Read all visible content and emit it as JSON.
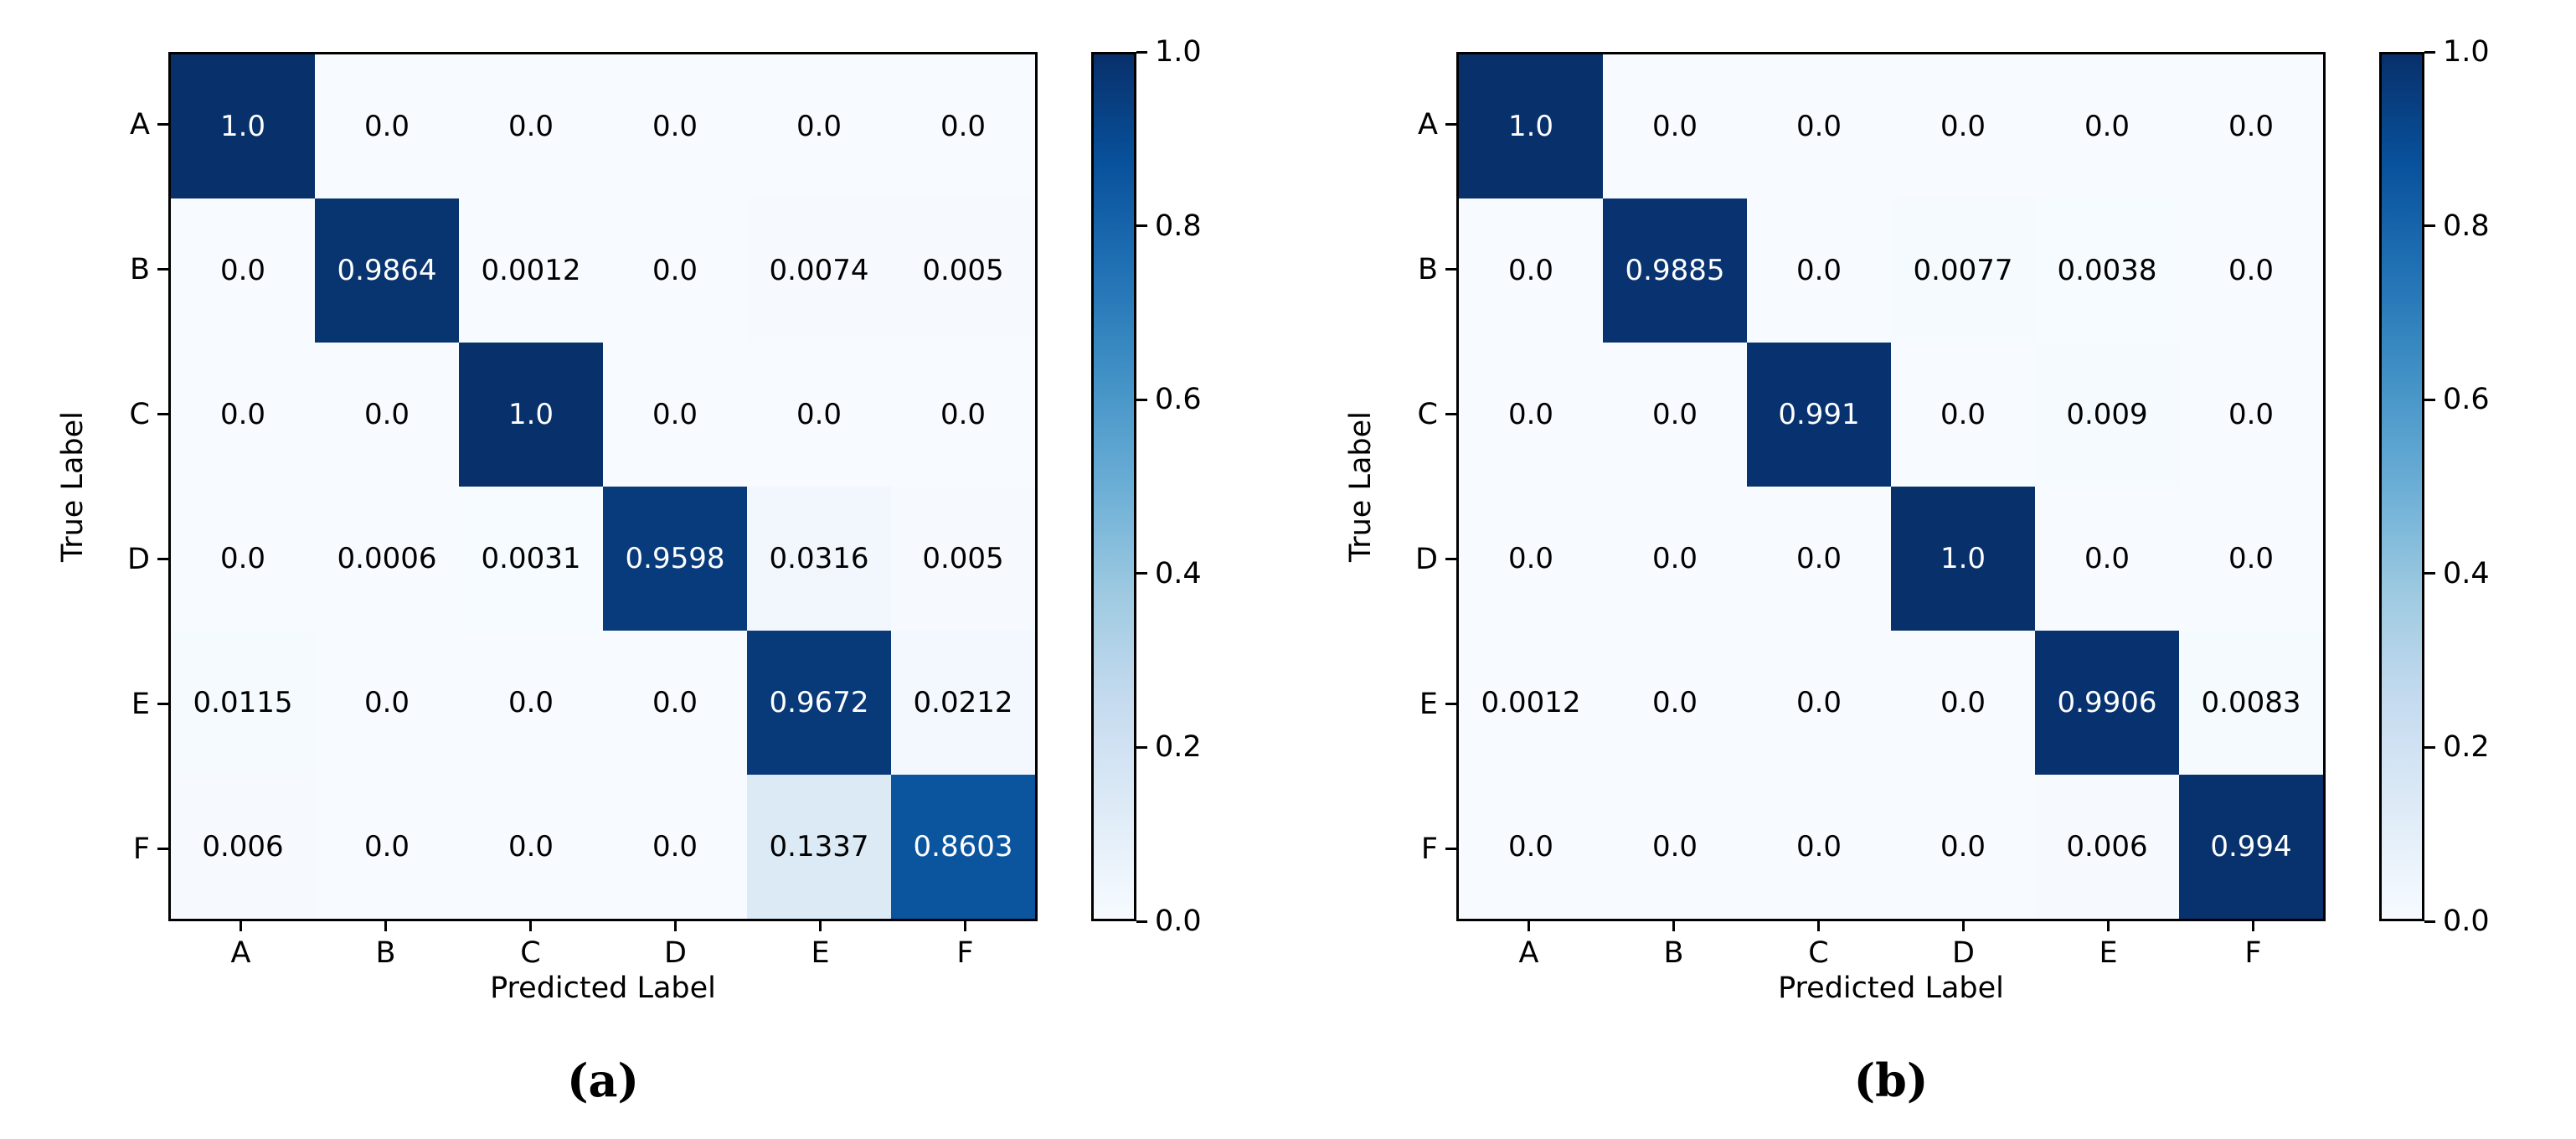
{
  "figure": {
    "panels": [
      {
        "caption": "(a)",
        "xlabel": "Predicted Label",
        "ylabel": "True Label"
      },
      {
        "caption": "(b)",
        "xlabel": "Predicted Label",
        "ylabel": "True Label"
      }
    ]
  },
  "chart_data": [
    {
      "type": "heatmap",
      "subtitle": "(a)",
      "xlabel": "Predicted Label",
      "ylabel": "True Label",
      "x_categories": [
        "A",
        "B",
        "C",
        "D",
        "E",
        "F"
      ],
      "y_categories": [
        "A",
        "B",
        "C",
        "D",
        "E",
        "F"
      ],
      "matrix": [
        [
          1.0,
          0.0,
          0.0,
          0.0,
          0.0,
          0.0
        ],
        [
          0.0,
          0.9864,
          0.0012,
          0.0,
          0.0074,
          0.005
        ],
        [
          0.0,
          0.0,
          1.0,
          0.0,
          0.0,
          0.0
        ],
        [
          0.0,
          0.0006,
          0.0031,
          0.9598,
          0.0316,
          0.005
        ],
        [
          0.0115,
          0.0,
          0.0,
          0.0,
          0.9672,
          0.0212
        ],
        [
          0.006,
          0.0,
          0.0,
          0.0,
          0.1337,
          0.8603
        ]
      ],
      "colormap": "Blues",
      "color_range": [
        0.0,
        1.0
      ],
      "colorbar_ticks": [
        0.0,
        0.2,
        0.4,
        0.6,
        0.8,
        1.0
      ],
      "legend_position": "right-colorbar",
      "grid": false
    },
    {
      "type": "heatmap",
      "subtitle": "(b)",
      "xlabel": "Predicted Label",
      "ylabel": "True Label",
      "x_categories": [
        "A",
        "B",
        "C",
        "D",
        "E",
        "F"
      ],
      "y_categories": [
        "A",
        "B",
        "C",
        "D",
        "E",
        "F"
      ],
      "matrix": [
        [
          1.0,
          0.0,
          0.0,
          0.0,
          0.0,
          0.0
        ],
        [
          0.0,
          0.9885,
          0.0,
          0.0077,
          0.0038,
          0.0
        ],
        [
          0.0,
          0.0,
          0.991,
          0.0,
          0.009,
          0.0
        ],
        [
          0.0,
          0.0,
          0.0,
          1.0,
          0.0,
          0.0
        ],
        [
          0.0012,
          0.0,
          0.0,
          0.0,
          0.9906,
          0.0083
        ],
        [
          0.0,
          0.0,
          0.0,
          0.0,
          0.006,
          0.994
        ]
      ],
      "colormap": "Blues",
      "color_range": [
        0.0,
        1.0
      ],
      "colorbar_ticks": [
        0.0,
        0.2,
        0.4,
        0.6,
        0.8,
        1.0
      ],
      "legend_position": "right-colorbar",
      "grid": false
    }
  ],
  "colors": {
    "cmap_low": "#f7fbff",
    "cmap_high": "#08306b",
    "axis_line": "#000000",
    "cell_text_dark": "#000000",
    "cell_text_light": "#ffffff"
  }
}
